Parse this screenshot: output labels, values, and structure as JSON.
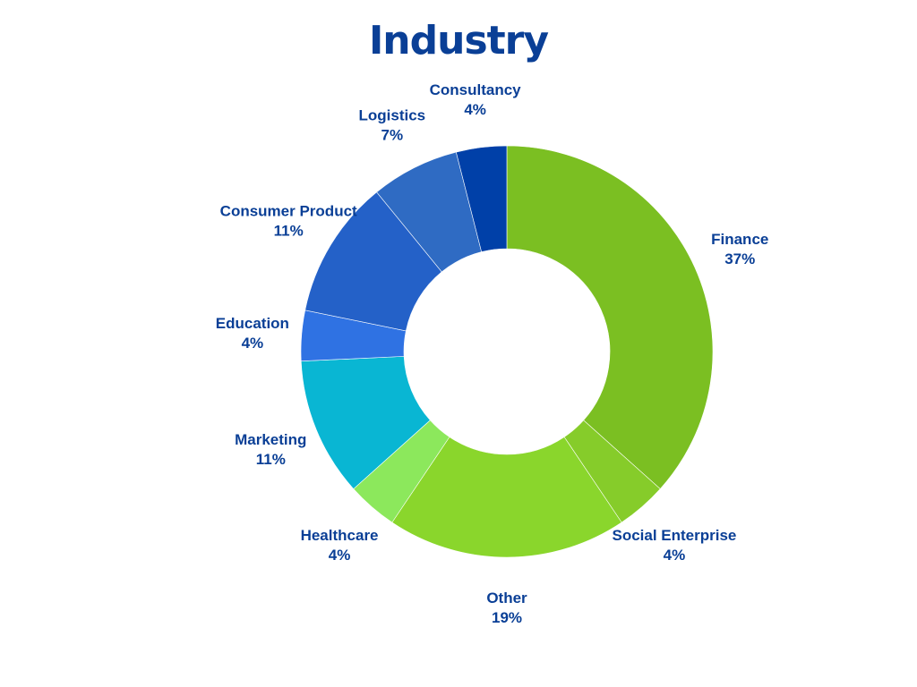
{
  "chart_data": {
    "type": "pie",
    "variant": "donut",
    "title": "Industry",
    "label_color": "#0a3f96",
    "slices": [
      {
        "label": "Finance",
        "value": 37,
        "value_label": "37%",
        "color": "#7bbf22"
      },
      {
        "label": "Social Enterprise",
        "value": 4,
        "value_label": "4%",
        "color": "#86cc2a"
      },
      {
        "label": "Other",
        "value": 19,
        "value_label": "19%",
        "color": "#8ad62c"
      },
      {
        "label": "Healthcare",
        "value": 4,
        "value_label": "4%",
        "color": "#8ce85c"
      },
      {
        "label": "Marketing",
        "value": 11,
        "value_label": "11%",
        "color": "#09b6d3"
      },
      {
        "label": "Education",
        "value": 4,
        "value_label": "4%",
        "color": "#2f72e3"
      },
      {
        "label": "Consumer Product",
        "value": 11,
        "value_label": "11%",
        "color": "#2461c8"
      },
      {
        "label": "Logistics",
        "value": 7,
        "value_label": "7%",
        "color": "#2f6bc3"
      },
      {
        "label": "Consultancy",
        "value": 4,
        "value_label": "4%",
        "color": "#0040a8"
      }
    ]
  }
}
